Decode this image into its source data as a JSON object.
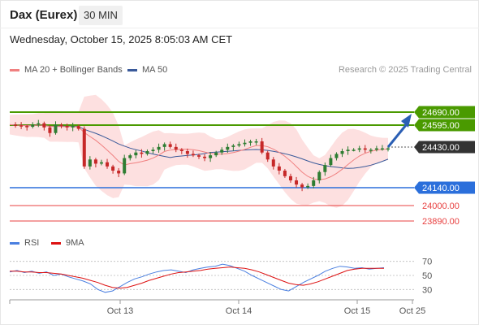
{
  "header": {
    "title": "Dax (Eurex)",
    "timeframe": "30 MIN",
    "datetime": "Wednesday, October 15, 2025 8:05:03 AM CET"
  },
  "legend": {
    "ma20_label": "MA 20 + Bollinger Bands",
    "ma50_label": "MA 50",
    "rsi_label": "RSI",
    "rsi_ma_label": "9MA",
    "credit": "Research © 2025 Trading Central"
  },
  "colors": {
    "ma20": "#f08080",
    "ma50": "#3a5a9a",
    "bands": "#fde0e0",
    "resistance": "#4a9a00",
    "support": "#2b6fdb",
    "target": "#e84040",
    "current": "#333333",
    "candle_up": "#2e7d32",
    "candle_down": "#c62828",
    "arrow": "#2b5fb4",
    "rsi": "#4a7fe0",
    "rsi_ma": "#dd1111"
  },
  "levels": [
    {
      "label": "24690.00",
      "kind": "resistance"
    },
    {
      "label": "24595.00",
      "kind": "resistance"
    },
    {
      "label": "24430.00",
      "kind": "current"
    },
    {
      "label": "24140.00",
      "kind": "support"
    },
    {
      "label": "24000.00",
      "kind": "target"
    },
    {
      "label": "23890.00",
      "kind": "target"
    }
  ],
  "chart_data": {
    "type": "line",
    "x_ticks": [
      "Oct 13",
      "Oct 14",
      "Oct 15",
      "Oct 25"
    ],
    "price_ylim": [
      23850,
      24900
    ],
    "price_path": [
      24600,
      24595,
      24590,
      24585,
      24600,
      24610,
      24580,
      24540,
      24600,
      24590,
      24580,
      24590,
      24570,
      24300,
      24350,
      24320,
      24330,
      24300,
      24270,
      24250,
      24360,
      24380,
      24400,
      24390,
      24410,
      24420,
      24440,
      24460,
      24440,
      24420,
      24410,
      24390,
      24380,
      24370,
      24360,
      24380,
      24400,
      24420,
      24440,
      24450,
      24460,
      24470,
      24480,
      24480,
      24400,
      24350,
      24300,
      24270,
      24230,
      24200,
      24170,
      24150,
      24160,
      24200,
      24260,
      24310,
      24360,
      24390,
      24410,
      24420,
      24420,
      24430,
      24420,
      24420,
      24430,
      24430,
      24430
    ],
    "rsi_ylim": [
      20,
      80
    ],
    "rsi_ticks": [
      70,
      50,
      30
    ],
    "rsi_path": [
      55,
      57,
      54,
      56,
      53,
      55,
      50,
      52,
      48,
      45,
      42,
      38,
      30,
      26,
      28,
      34,
      40,
      45,
      48,
      52,
      55,
      57,
      58,
      56,
      54,
      58,
      60,
      62,
      63,
      66,
      64,
      60,
      56,
      50,
      45,
      40,
      35,
      30,
      28,
      34,
      40,
      45,
      50,
      56,
      60,
      63,
      62,
      60,
      61,
      59,
      60,
      61
    ],
    "rsi_ma_path": [
      56,
      56,
      55,
      55,
      54,
      54,
      53,
      52,
      50,
      48,
      46,
      43,
      40,
      36,
      33,
      32,
      33,
      36,
      39,
      43,
      46,
      49,
      52,
      54,
      55,
      56,
      57,
      59,
      60,
      61,
      62,
      61,
      60,
      58,
      55,
      51,
      47,
      43,
      39,
      37,
      36,
      38,
      41,
      45,
      49,
      53,
      57,
      59,
      60,
      60,
      60,
      60
    ]
  }
}
